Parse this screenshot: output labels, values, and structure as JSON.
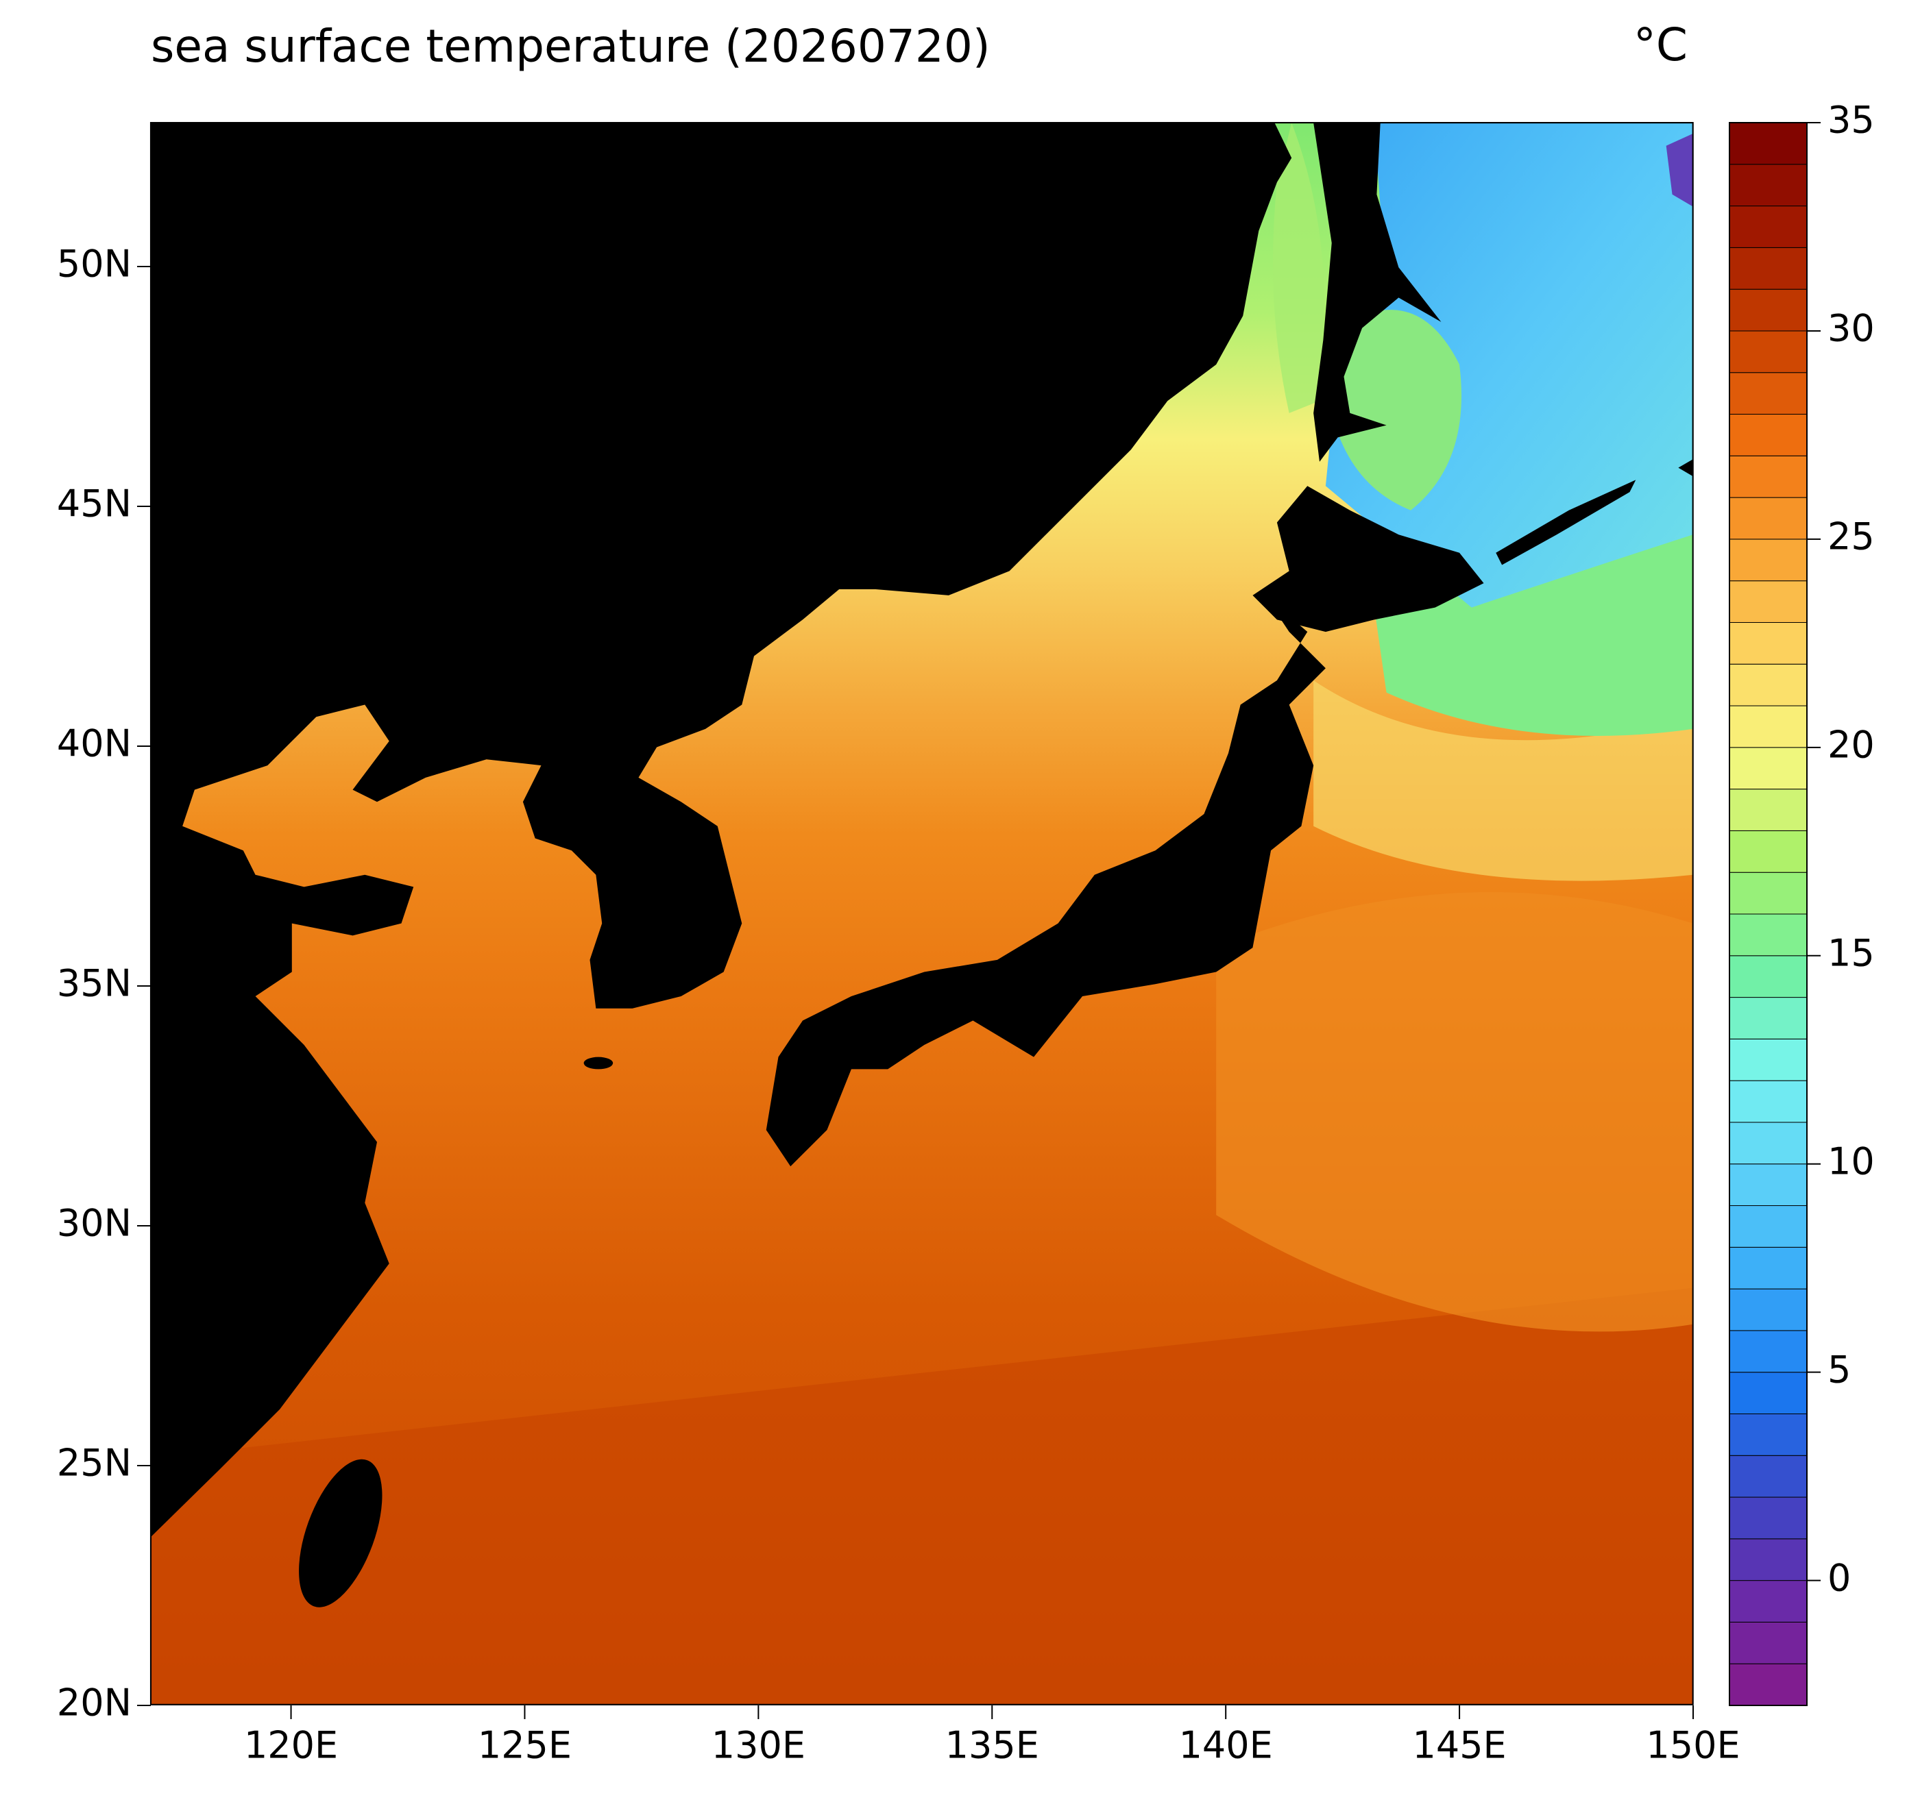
{
  "chart_data": {
    "type": "map",
    "title": "sea surface temperature (20260720)",
    "xlim": [
      117,
      150
    ],
    "ylim": [
      20,
      53
    ],
    "xticks": [
      {
        "value": 120,
        "label": "120E"
      },
      {
        "value": 125,
        "label": "125E"
      },
      {
        "value": 130,
        "label": "130E"
      },
      {
        "value": 135,
        "label": "135E"
      },
      {
        "value": 140,
        "label": "140E"
      },
      {
        "value": 145,
        "label": "145E"
      },
      {
        "value": 150,
        "label": "150E"
      }
    ],
    "yticks": [
      {
        "value": 20,
        "label": "20N"
      },
      {
        "value": 25,
        "label": "25N"
      },
      {
        "value": 30,
        "label": "30N"
      },
      {
        "value": 35,
        "label": "35N"
      },
      {
        "value": 40,
        "label": "40N"
      },
      {
        "value": 45,
        "label": "45N"
      },
      {
        "value": 50,
        "label": "50N"
      }
    ],
    "colorbar": {
      "label": "°C",
      "lim": [
        -3,
        35
      ],
      "step": 1,
      "ticks": [
        0,
        5,
        10,
        15,
        20,
        25,
        30,
        35
      ],
      "colors": [
        "#861a8a",
        "#6a2aa8",
        "#3a48c8",
        "#1a78f0",
        "#38aaf8",
        "#5cd0f8",
        "#78f4f0",
        "#70f0a0",
        "#a8f068",
        "#f8f880",
        "#fcd460",
        "#f8a030",
        "#f07010",
        "#c84000",
        "#a01800",
        "#7a0000"
      ]
    }
  }
}
